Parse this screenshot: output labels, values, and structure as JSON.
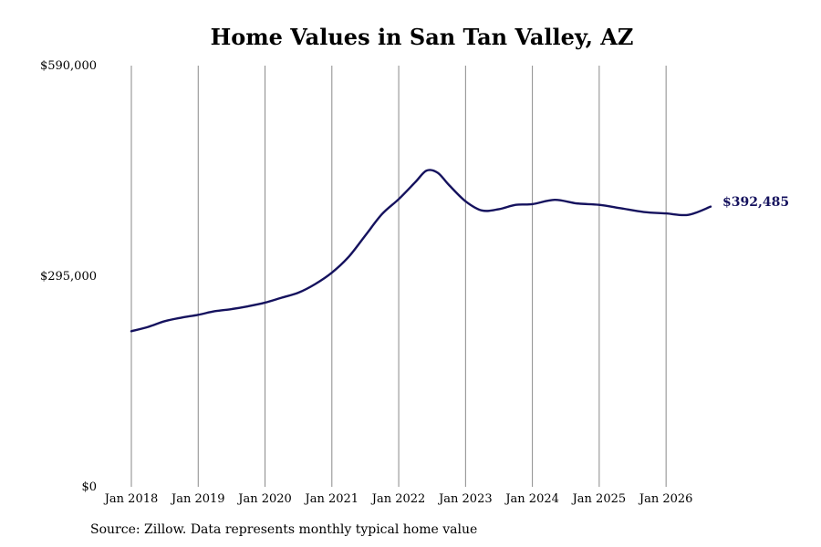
{
  "chart_data": {
    "type": "line",
    "title": "Home Values in San Tan Valley, AZ",
    "xlabel": "",
    "ylabel": "",
    "ylim": [
      0,
      590000
    ],
    "yticks": [
      {
        "value": 0,
        "label": "$0"
      },
      {
        "value": 295000,
        "label": "$295,000"
      },
      {
        "value": 590000,
        "label": "$590,000"
      }
    ],
    "xlim": [
      "2018-01",
      "2026-09"
    ],
    "xticks": [
      {
        "value": "2018-01",
        "label": "Jan 2018"
      },
      {
        "value": "2019-01",
        "label": "Jan 2019"
      },
      {
        "value": "2020-01",
        "label": "Jan 2020"
      },
      {
        "value": "2021-01",
        "label": "Jan 2021"
      },
      {
        "value": "2022-01",
        "label": "Jan 2022"
      },
      {
        "value": "2023-01",
        "label": "Jan 2023"
      },
      {
        "value": "2024-01",
        "label": "Jan 2024"
      },
      {
        "value": "2025-01",
        "label": "Jan 2025"
      },
      {
        "value": "2026-01",
        "label": "Jan 2026"
      }
    ],
    "vertical_grid": true,
    "horizontal_grid": false,
    "line_color": "#15125e",
    "grid_color": "#8a8a8a",
    "end_label": "$392,485",
    "series": [
      {
        "points": [
          {
            "x": "2018-01",
            "y": 218000
          },
          {
            "x": "2018-04",
            "y": 224000
          },
          {
            "x": "2018-07",
            "y": 232000
          },
          {
            "x": "2018-10",
            "y": 237000
          },
          {
            "x": "2019-01",
            "y": 241000
          },
          {
            "x": "2019-04",
            "y": 246000
          },
          {
            "x": "2019-07",
            "y": 249000
          },
          {
            "x": "2019-10",
            "y": 253000
          },
          {
            "x": "2020-01",
            "y": 258000
          },
          {
            "x": "2020-04",
            "y": 265000
          },
          {
            "x": "2020-07",
            "y": 272000
          },
          {
            "x": "2020-10",
            "y": 284000
          },
          {
            "x": "2021-01",
            "y": 300000
          },
          {
            "x": "2021-04",
            "y": 322000
          },
          {
            "x": "2021-07",
            "y": 352000
          },
          {
            "x": "2021-10",
            "y": 382000
          },
          {
            "x": "2022-01",
            "y": 403000
          },
          {
            "x": "2022-04",
            "y": 427000
          },
          {
            "x": "2022-06",
            "y": 443000
          },
          {
            "x": "2022-08",
            "y": 440000
          },
          {
            "x": "2022-10",
            "y": 423000
          },
          {
            "x": "2023-01",
            "y": 400000
          },
          {
            "x": "2023-04",
            "y": 387000
          },
          {
            "x": "2023-07",
            "y": 389000
          },
          {
            "x": "2023-10",
            "y": 395000
          },
          {
            "x": "2024-01",
            "y": 396000
          },
          {
            "x": "2024-05",
            "y": 402000
          },
          {
            "x": "2024-09",
            "y": 397000
          },
          {
            "x": "2025-01",
            "y": 395000
          },
          {
            "x": "2025-05",
            "y": 390000
          },
          {
            "x": "2025-09",
            "y": 385000
          },
          {
            "x": "2026-01",
            "y": 383000
          },
          {
            "x": "2026-05",
            "y": 381000
          },
          {
            "x": "2026-09",
            "y": 392485
          }
        ]
      }
    ]
  },
  "footer": {
    "source": "Source: Zillow. Data represents monthly typical home value"
  }
}
